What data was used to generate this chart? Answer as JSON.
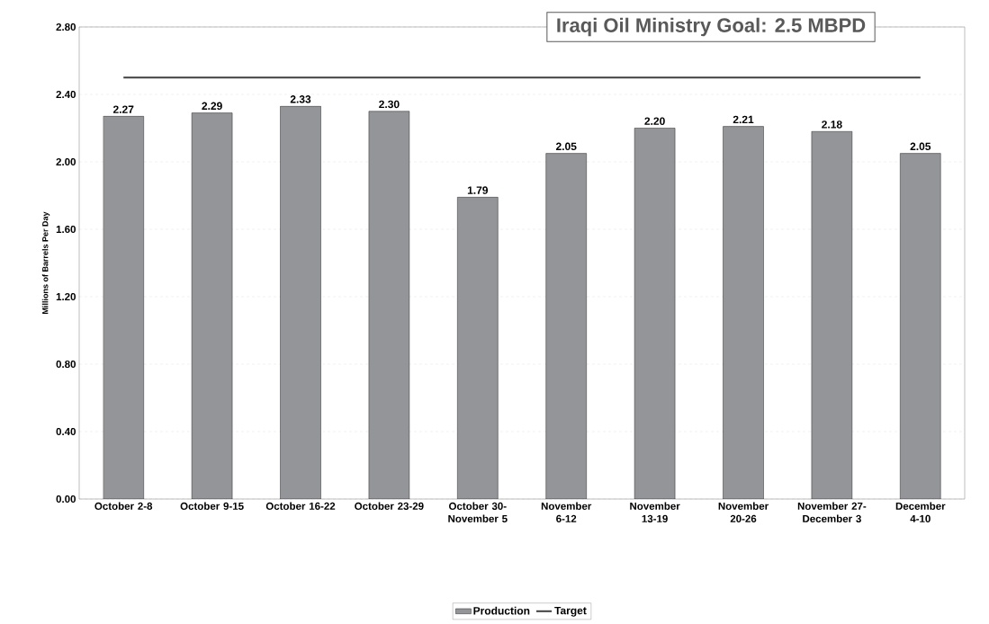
{
  "chart_data": {
    "type": "bar",
    "categories": [
      "October 2-8",
      "October 9-15",
      "October 16-22",
      "October 23-29",
      "October 30-November 5",
      "November 6-12",
      "November 13-19",
      "November 20-26",
      "November 27-December 3",
      "December 4-10"
    ],
    "ylabel": "Millions of Barrels Per Day",
    "annotations": [
      "Iraqi Oil Ministry Goal: 2.5 MBPD"
    ],
    "series": [
      {
        "name": "Production",
        "color": "#939598",
        "values": [
          2.27,
          2.29,
          2.33,
          2.3,
          1.79,
          2.05,
          2.2,
          2.21,
          2.18,
          2.05
        ],
        "value_labels": [
          "2.27",
          "2.29",
          "2.33",
          "2.30",
          "1.79",
          "2.05",
          "2.20",
          "2.21",
          "2.18",
          "2.05"
        ]
      },
      {
        "name": "Target",
        "type": "line",
        "color": "#404040",
        "values": [
          2.5,
          2.5,
          2.5,
          2.5,
          2.5,
          2.5,
          2.5,
          2.5,
          2.5,
          2.5
        ]
      }
    ],
    "ylim": [
      0,
      2.8
    ],
    "yticks": [
      {
        "value": 0,
        "label": "0.00"
      },
      {
        "value": 0.4,
        "label": "0.40"
      },
      {
        "value": 0.8,
        "label": "0.80"
      },
      {
        "value": 1.2,
        "label": "1.20"
      },
      {
        "value": 1.6,
        "label": "1.60"
      },
      {
        "value": 2.0,
        "label": "2.00"
      },
      {
        "value": 2.4,
        "label": "2.40"
      },
      {
        "value": 2.8,
        "label": "2.80"
      }
    ],
    "grid": "y",
    "legend": "bottom"
  }
}
